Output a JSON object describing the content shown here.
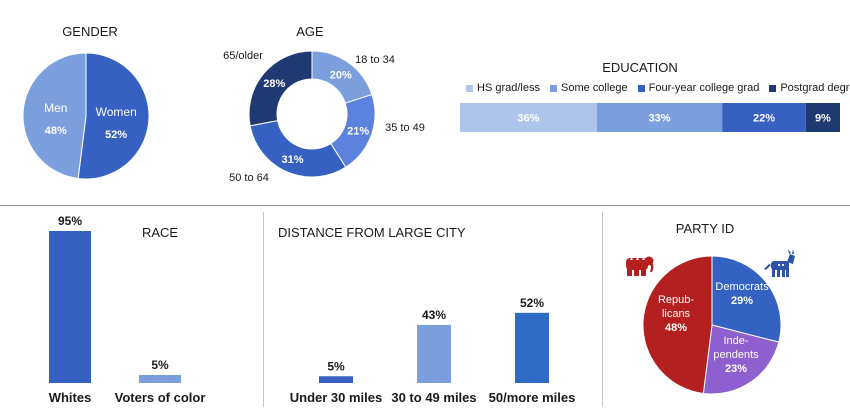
{
  "chart_data": [
    {
      "id": "gender",
      "type": "pie",
      "title": "GENDER",
      "slices": [
        {
          "label": "Women",
          "value": 52,
          "display": "52%",
          "color": "#3660c2"
        },
        {
          "label": "Men",
          "value": 48,
          "display": "48%",
          "color": "#7b9fdc"
        }
      ]
    },
    {
      "id": "age",
      "type": "pie",
      "title": "AGE",
      "slices": [
        {
          "label": "18 to 34",
          "value": 20,
          "display": "20%",
          "color": "#7b9fdc"
        },
        {
          "label": "35 to 49",
          "value": 21,
          "display": "21%",
          "color": "#5b82de"
        },
        {
          "label": "50 to 64",
          "value": 31,
          "display": "31%",
          "color": "#3660c2"
        },
        {
          "label": "65/older",
          "value": 28,
          "display": "28%",
          "color": "#1f3a73"
        }
      ]
    },
    {
      "id": "education",
      "type": "bar",
      "title": "EDUCATION",
      "legend": "top",
      "series": [
        {
          "name": "HS grad/less",
          "value": 36,
          "display": "36%",
          "color": "#aec4ec"
        },
        {
          "name": "Some college",
          "value": 33,
          "display": "33%",
          "color": "#7b9fdc"
        },
        {
          "name": "Four-year college grad",
          "value": 22,
          "display": "22%",
          "color": "#3660c2"
        },
        {
          "name": "Postgrad degree",
          "value": 9,
          "display": "9%",
          "color": "#1f3a73"
        }
      ]
    },
    {
      "id": "race",
      "type": "bar",
      "title": "RACE",
      "ylim": [
        0,
        100
      ],
      "categories": [
        "Whites",
        "Voters of color"
      ],
      "values": [
        95,
        5
      ],
      "display": [
        "95%",
        "5%"
      ],
      "colors": [
        "#3660c2",
        "#7b9fdc"
      ]
    },
    {
      "id": "distance",
      "type": "bar",
      "title": "DISTANCE FROM LARGE CITY",
      "ylim": [
        0,
        100
      ],
      "categories": [
        "Under 30 miles",
        "30 to 49 miles",
        "50/more miles"
      ],
      "values": [
        5,
        43,
        52
      ],
      "display": [
        "5%",
        "43%",
        "52%"
      ],
      "colors": [
        "#3660c2",
        "#7b9fdc",
        "#2f6bc6"
      ]
    },
    {
      "id": "party",
      "type": "pie",
      "title": "PARTY ID",
      "slices": [
        {
          "label": "Democrats",
          "value": 29,
          "display": "29%",
          "color": "#3462c2"
        },
        {
          "label": "Inde-\npendents",
          "value": 23,
          "display": "23%",
          "color": "#8e5fcf"
        },
        {
          "label": "Repub-\nlicans",
          "value": 48,
          "display": "48%",
          "color": "#b41f1f"
        }
      ],
      "icons": [
        "elephant-icon",
        "donkey-icon"
      ]
    }
  ]
}
